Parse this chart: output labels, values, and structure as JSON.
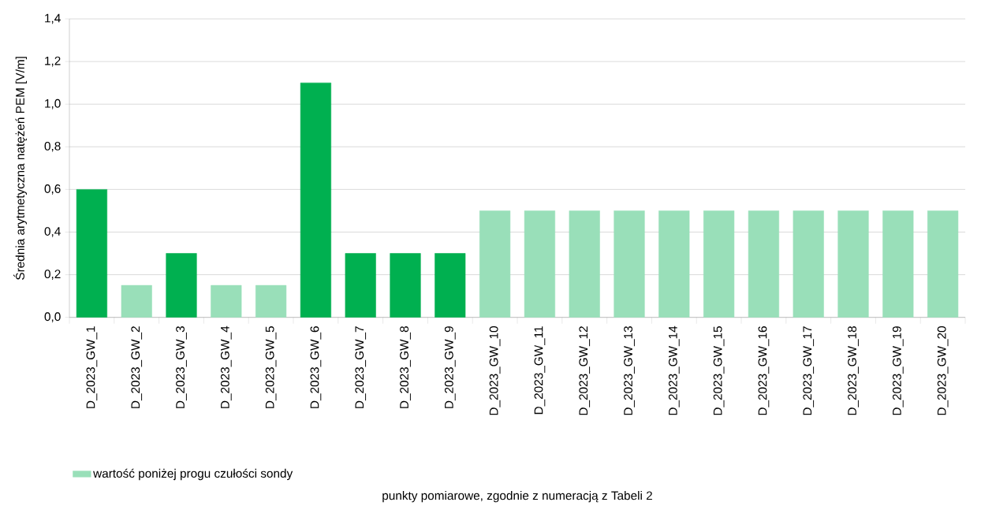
{
  "chart_data": {
    "type": "bar",
    "ylabel": "Średnia arytmetyczna  natężeń PEM [V/m]",
    "annotations": [
      "punkty pomiarowe, zgodnie z numeracją z Tabeli 2"
    ],
    "categories": [
      "D_2023_GW_1",
      "D_2023_GW_2",
      "D_2023_GW_3",
      "D_2023_GW_4",
      "D_2023_GW_5",
      "D_2023_GW_6",
      "D_2023_GW_7",
      "D_2023_GW_8",
      "D_2023_GW_9",
      "D_2023_GW_10",
      "D_2023_GW_11",
      "D_2023_GW_12",
      "D_2023_GW_13",
      "D_2023_GW_14",
      "D_2023_GW_15",
      "D_2023_GW_16",
      "D_2023_GW_17",
      "D_2023_GW_18",
      "D_2023_GW_19",
      "D_2023_GW_20"
    ],
    "series": [
      {
        "color": "#00b050",
        "values": [
          0.6,
          null,
          0.3,
          null,
          null,
          1.1,
          0.3,
          0.3,
          0.3,
          null,
          null,
          null,
          null,
          null,
          null,
          null,
          null,
          null,
          null,
          null
        ]
      },
      {
        "name": "wartość poniżej progu czułości sondy",
        "color": "#99dfb9",
        "values": [
          null,
          0.15,
          null,
          0.15,
          0.15,
          null,
          null,
          null,
          null,
          0.5,
          0.5,
          0.5,
          0.5,
          0.5,
          0.5,
          0.5,
          0.5,
          0.5,
          0.5,
          0.5
        ]
      }
    ],
    "ylim": [
      0,
      1.4
    ],
    "yticks": [
      {
        "value": 0,
        "label": "0,0"
      },
      {
        "value": 0.2,
        "label": "0,2"
      },
      {
        "value": 0.4,
        "label": "0,4"
      },
      {
        "value": 0.6,
        "label": "0,6"
      },
      {
        "value": 0.8,
        "label": "0,8"
      },
      {
        "value": 1.0,
        "label": "1,0"
      },
      {
        "value": 1.2,
        "label": "1,2"
      },
      {
        "value": 1.4,
        "label": "1,4"
      }
    ],
    "grid": "y",
    "legend": "bottom"
  }
}
